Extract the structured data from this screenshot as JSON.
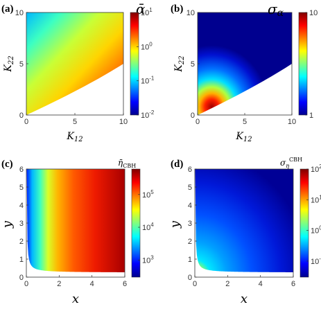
{
  "figure": {
    "colormap": "jet",
    "colors": {
      "axis": "#333333",
      "background": "#ffffff"
    }
  },
  "chart_data": [
    {
      "type": "heatmap",
      "panel_label": "(a)",
      "title": "ᾱ",
      "xlabel": "K12",
      "ylabel": "K22",
      "xlim": [
        0,
        10
      ],
      "ylim": [
        0,
        10
      ],
      "xticks": [
        "0",
        "5",
        "10"
      ],
      "yticks": [
        "0",
        "5",
        "10"
      ],
      "colorbar": {
        "scale": "log",
        "min": 0.01,
        "max": 10,
        "ticks": [
          {
            "value": 10,
            "base": "10",
            "exp": "1"
          },
          {
            "value": 1,
            "base": "10",
            "exp": "0"
          },
          {
            "value": 0.1,
            "base": "10",
            "exp": "-1"
          },
          {
            "value": 0.01,
            "base": "10",
            "exp": "-2"
          }
        ]
      },
      "domain_boundary": "K22 < 5 (K12 - 2)^... region below curve from (0,0) to (10,5) is blank",
      "grid": false
    },
    {
      "type": "heatmap",
      "panel_label": "(b)",
      "title": "σα",
      "xlabel": "K12",
      "ylabel": "K22",
      "xlim": [
        0,
        10
      ],
      "ylim": [
        0,
        10
      ],
      "xticks": [
        "0",
        "5",
        "10"
      ],
      "yticks": [
        "0",
        "5",
        "10"
      ],
      "colorbar": {
        "scale": "log",
        "min": 1,
        "max": 10,
        "ticks": [
          {
            "value": 10,
            "label": "10"
          },
          {
            "value": 1,
            "label": "1"
          }
        ]
      },
      "peak": {
        "x": 1.5,
        "y": 0.8
      },
      "grid": false
    },
    {
      "type": "heatmap",
      "panel_label": "(c)",
      "title": "η̄CBH",
      "xlabel": "x",
      "ylabel": "y",
      "xlim": [
        0,
        6
      ],
      "ylim": [
        0,
        6
      ],
      "xticks": [
        "0",
        "2",
        "4",
        "6"
      ],
      "yticks": [
        "0",
        "1",
        "2",
        "3",
        "4",
        "5",
        "6"
      ],
      "colorbar": {
        "scale": "log",
        "min": 300,
        "max": 600000,
        "ticks": [
          {
            "value": 100000,
            "base": "10",
            "exp": "5"
          },
          {
            "value": 10000,
            "base": "10",
            "exp": "4"
          },
          {
            "value": 1000,
            "base": "10",
            "exp": "3"
          }
        ]
      },
      "domain_boundary": "y > 0.25 + 0.12/x",
      "grid": false
    },
    {
      "type": "heatmap",
      "panel_label": "(d)",
      "title": "σηCBH",
      "xlabel": "x",
      "ylabel": "y",
      "xlim": [
        0,
        6
      ],
      "ylim": [
        0,
        6
      ],
      "xticks": [
        "0",
        "2",
        "4",
        "6"
      ],
      "yticks": [
        "0",
        "1",
        "2",
        "3",
        "4",
        "5",
        "6"
      ],
      "colorbar": {
        "scale": "log",
        "min": 0.03,
        "max": 100,
        "ticks": [
          {
            "value": 100,
            "base": "10",
            "exp": "2"
          },
          {
            "value": 10,
            "base": "10",
            "exp": "1"
          },
          {
            "value": 1,
            "base": "10",
            "exp": "0"
          },
          {
            "value": 0.1,
            "base": "10",
            "exp": "-1"
          }
        ]
      },
      "domain_boundary": "y > 0.25 + 0.12/x",
      "grid": false
    }
  ]
}
